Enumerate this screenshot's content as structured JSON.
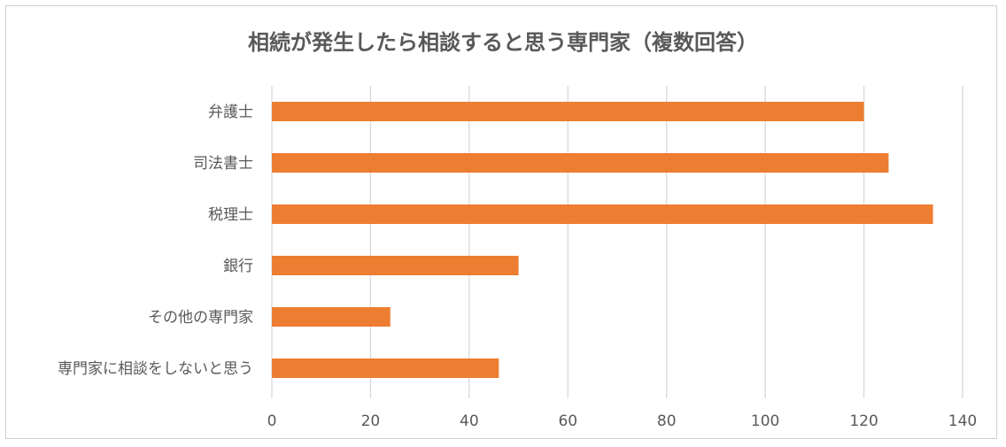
{
  "chart_data": {
    "type": "bar",
    "orientation": "horizontal",
    "title": "相続が発生したら相談すると思う専門家（複数回答）",
    "xlabel": "",
    "ylabel": "",
    "categories": [
      "弁護士",
      "司法書士",
      "税理士",
      "銀行",
      "その他の専門家",
      "専門家に相談をしないと思う"
    ],
    "values": [
      120,
      125,
      134,
      50,
      24,
      46
    ],
    "xlim": [
      0,
      140
    ],
    "ticks": [
      "0",
      "20",
      "40",
      "60",
      "80",
      "100",
      "120",
      "140"
    ],
    "grid": true,
    "bar_color": "#ed7d31",
    "legend": "none"
  }
}
